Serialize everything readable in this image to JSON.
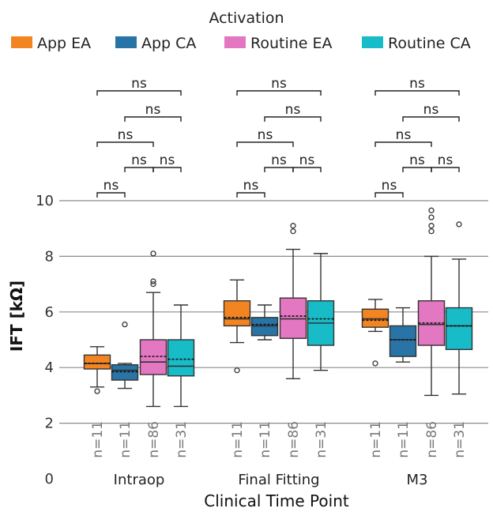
{
  "chart_data": {
    "type": "box",
    "ylabel": "IFT [kΩ]",
    "xlabel": "Clinical Time Point",
    "ylim": [
      0,
      10
    ],
    "y_ticks": [
      {
        "value": 0,
        "label": "0"
      },
      {
        "value": 2,
        "label": "2"
      },
      {
        "value": 4,
        "label": "4"
      },
      {
        "value": 6,
        "label": "6"
      },
      {
        "value": 8,
        "label": "8"
      },
      {
        "value": 10,
        "label": "10"
      }
    ],
    "gridlines_at": [
      2,
      4,
      6,
      8,
      10
    ],
    "legend": {
      "title": "Activation",
      "position": "top",
      "entries": [
        {
          "name": "App EA",
          "color": "#f28522"
        },
        {
          "name": "App CA",
          "color": "#2874a6"
        },
        {
          "name": "Routine EA",
          "color": "#e377c2"
        },
        {
          "name": "Routine CA",
          "color": "#17bcc8"
        }
      ]
    },
    "groups": [
      {
        "name": "Intraop",
        "boxes": [
          {
            "series": "App EA",
            "n_label": "n=11",
            "whisker_low": 3.3,
            "q1": 3.95,
            "median": 4.15,
            "mean": 4.15,
            "q3": 4.45,
            "whisker_high": 4.75,
            "outliers": [
              3.15
            ]
          },
          {
            "series": "App CA",
            "n_label": "n=11",
            "whisker_low": 3.25,
            "q1": 3.55,
            "median": 3.9,
            "mean": 3.85,
            "q3": 4.1,
            "whisker_high": 4.15,
            "outliers": [
              5.55
            ]
          },
          {
            "series": "Routine EA",
            "n_label": "n=86",
            "whisker_low": 2.6,
            "q1": 3.75,
            "median": 4.2,
            "mean": 4.4,
            "q3": 5.0,
            "whisker_high": 6.7,
            "outliers": [
              7.0,
              7.1,
              8.1
            ]
          },
          {
            "series": "Routine CA",
            "n_label": "n=31",
            "whisker_low": 2.6,
            "q1": 3.7,
            "median": 4.05,
            "mean": 4.3,
            "q3": 5.0,
            "whisker_high": 6.25,
            "outliers": []
          }
        ]
      },
      {
        "name": "Final Fitting",
        "boxes": [
          {
            "series": "App EA",
            "n_label": "n=11",
            "whisker_low": 4.9,
            "q1": 5.5,
            "median": 5.75,
            "mean": 5.8,
            "q3": 6.4,
            "whisker_high": 7.15,
            "outliers": [
              3.9
            ]
          },
          {
            "series": "App CA",
            "n_label": "n=11",
            "whisker_low": 5.0,
            "q1": 5.15,
            "median": 5.5,
            "mean": 5.55,
            "q3": 5.8,
            "whisker_high": 6.25,
            "outliers": []
          },
          {
            "series": "Routine EA",
            "n_label": "n=86",
            "whisker_low": 3.6,
            "q1": 5.05,
            "median": 5.75,
            "mean": 5.85,
            "q3": 6.5,
            "whisker_high": 8.25,
            "outliers": [
              8.9,
              9.1
            ]
          },
          {
            "series": "Routine CA",
            "n_label": "n=31",
            "whisker_low": 3.9,
            "q1": 4.8,
            "median": 5.6,
            "mean": 5.75,
            "q3": 6.4,
            "whisker_high": 8.1,
            "outliers": []
          }
        ]
      },
      {
        "name": "M3",
        "boxes": [
          {
            "series": "App EA",
            "n_label": "n=11",
            "whisker_low": 5.3,
            "q1": 5.45,
            "median": 5.75,
            "mean": 5.7,
            "q3": 6.1,
            "whisker_high": 6.45,
            "outliers": [
              4.15
            ]
          },
          {
            "series": "App CA",
            "n_label": "n=11",
            "whisker_low": 4.2,
            "q1": 4.4,
            "median": 5.0,
            "mean": 5.0,
            "q3": 5.5,
            "whisker_high": 6.15,
            "outliers": []
          },
          {
            "series": "Routine EA",
            "n_label": "n=86",
            "whisker_low": 3.0,
            "q1": 4.8,
            "median": 5.55,
            "mean": 5.6,
            "q3": 6.4,
            "whisker_high": 8.0,
            "outliers": [
              8.9,
              9.1,
              9.4,
              9.65
            ]
          },
          {
            "series": "Routine CA",
            "n_label": "n=31",
            "whisker_low": 3.05,
            "q1": 4.65,
            "median": 5.5,
            "mean": 5.5,
            "q3": 6.15,
            "whisker_high": 7.9,
            "outliers": [
              9.15
            ]
          }
        ]
      }
    ],
    "significance": [
      {
        "pair": [
          "App EA",
          "App CA"
        ],
        "label": "ns"
      },
      {
        "pair": [
          "App CA",
          "Routine EA"
        ],
        "label": "ns"
      },
      {
        "pair": [
          "Routine EA",
          "Routine CA"
        ],
        "label": "ns"
      },
      {
        "pair": [
          "App EA",
          "Routine EA"
        ],
        "label": "ns"
      },
      {
        "pair": [
          "App CA",
          "Routine CA"
        ],
        "label": "ns"
      },
      {
        "pair": [
          "App EA",
          "Routine CA"
        ],
        "label": "ns"
      }
    ]
  }
}
